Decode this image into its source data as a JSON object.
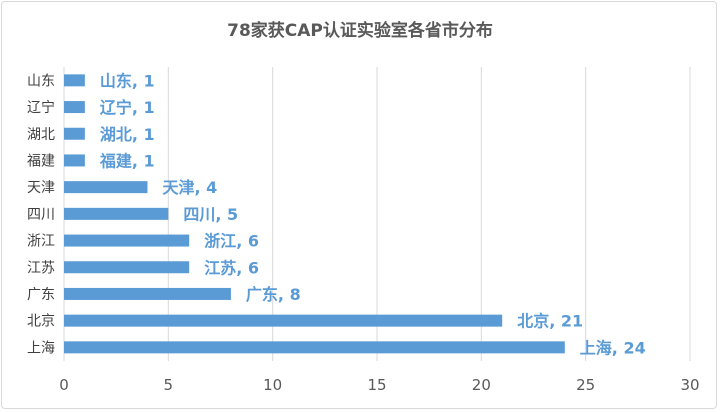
{
  "chart_data": {
    "type": "bar",
    "orientation": "horizontal",
    "title": "78家获CAP认证实验室各省市分布",
    "xlabel": "",
    "ylabel": "",
    "categories": [
      "山东",
      "辽宁",
      "湖北",
      "福建",
      "天津",
      "四川",
      "浙江",
      "江苏",
      "广东",
      "北京",
      "上海"
    ],
    "values": [
      1,
      1,
      1,
      1,
      4,
      5,
      6,
      6,
      8,
      21,
      24
    ],
    "data_labels": [
      "山东, 1",
      "辽宁, 1",
      "湖北, 1",
      "福建, 1",
      "天津, 4",
      "四川, 5",
      "浙江, 6",
      "江苏, 6",
      "广东, 8",
      "北京, 21",
      "上海, 24"
    ],
    "xlim": [
      0,
      30
    ],
    "xticks": [
      0,
      5,
      10,
      15,
      20,
      25,
      30
    ],
    "grid": true,
    "legend": "none",
    "bar_color": "#5b9bd5",
    "label_color": "#5b9bd5",
    "grid_color": "#d9d9d9"
  }
}
